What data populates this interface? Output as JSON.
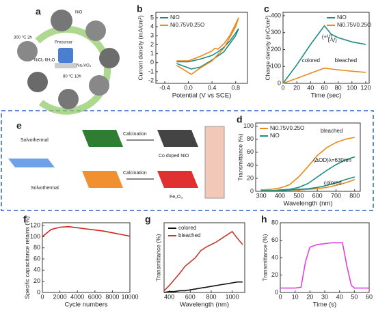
{
  "panel_a": {
    "label": "a",
    "texts": [
      "NiO",
      "300 °C 2h",
      "Precursor",
      "NiCl₂·6H₂O",
      "Na₃VO₄",
      "80 °C 10h"
    ]
  },
  "panel_e": {
    "label": "e",
    "texts": [
      "Solvothermal",
      "Solvothermal",
      "Calcination",
      "Calcination",
      "Co doped NiO",
      "Fe₂O₃"
    ]
  },
  "chart_data": [
    {
      "type": "line",
      "label": "b",
      "xlabel": "Potential (V vs SCE)",
      "ylabel": "Current density (mA/cm²)",
      "xlim": [
        -0.55,
        1.0
      ],
      "ylim": [
        -2.3,
        5.6
      ],
      "xticks": [
        -0.4,
        {
          "value": 0,
          "label": "0.0"
        },
        0.4,
        0.8
      ],
      "yticks": [
        -2,
        -1,
        0,
        1,
        2,
        3,
        4,
        5
      ],
      "legend": "upper left",
      "series": [
        {
          "name": "NiO",
          "color": "#1a8c80",
          "x": [
            -0.2,
            0,
            0.2,
            0.4,
            0.5,
            0.6,
            0.7,
            0.8,
            0.85,
            0.8,
            0.6,
            0.4,
            0.2,
            0.05,
            -0.2
          ],
          "values": [
            0.1,
            0.1,
            0.4,
            0.8,
            1.2,
            1.7,
            2.4,
            3.3,
            3.8,
            3.0,
            1.2,
            0.3,
            -0.5,
            -0.7,
            -0.1
          ]
        },
        {
          "name": "Ni0.75V0.25O",
          "color": "#e88a1a",
          "x": [
            -0.2,
            0,
            0.2,
            0.4,
            0.45,
            0.5,
            0.6,
            0.7,
            0.8,
            0.85,
            0.8,
            0.6,
            0.4,
            0.2,
            0.05,
            -0.2
          ],
          "values": [
            0.2,
            0.2,
            0.7,
            1.3,
            1.6,
            1.5,
            2.1,
            3.0,
            4.3,
            5.0,
            4.0,
            1.6,
            0.2,
            -0.6,
            -1.3,
            -0.3
          ]
        }
      ]
    },
    {
      "type": "line",
      "label": "c",
      "xlabel": "Time (sec)",
      "ylabel": "Charge density (mC/cm²)",
      "xlim": [
        0,
        125
      ],
      "ylim": [
        0,
        420
      ],
      "xticks": [
        0,
        20,
        40,
        60,
        80,
        100,
        120
      ],
      "yticks": [
        0,
        100,
        200,
        300,
        400
      ],
      "legend": "upper right",
      "annotations": [
        "(+V)",
        "(-V)",
        "colored",
        "bleached"
      ],
      "series": [
        {
          "name": "NiO",
          "color": "#1a8c80",
          "x": [
            0,
            20,
            40,
            60,
            70,
            80,
            100,
            120
          ],
          "values": [
            0,
            110,
            230,
            340,
            290,
            270,
            245,
            230
          ]
        },
        {
          "name": "Ni0.75V0.25O",
          "color": "#e88a1a",
          "x": [
            0,
            20,
            40,
            60,
            70,
            80,
            100,
            120
          ],
          "values": [
            0,
            30,
            60,
            90,
            85,
            80,
            72,
            65
          ]
        }
      ]
    },
    {
      "type": "line",
      "label": "d",
      "xlabel": "Wavelength (nm)",
      "ylabel": "Transmittance (%)",
      "xlim": [
        270,
        830
      ],
      "ylim": [
        0,
        105
      ],
      "xticks": [
        300,
        400,
        500,
        600,
        700,
        800
      ],
      "yticks": [
        0,
        20,
        40,
        60,
        80,
        100
      ],
      "legend": "upper left",
      "annotations": [
        "bleached",
        "(ΔOD)λ=630nm",
        "colored"
      ],
      "series": [
        {
          "name": "Ni0.75V0.25O",
          "color": "#e88a1a",
          "x": [
            300,
            350,
            400,
            450,
            500,
            550,
            600,
            650,
            700,
            750,
            800
          ],
          "values": [
            2,
            3,
            5,
            10,
            22,
            38,
            55,
            67,
            75,
            80,
            83
          ]
        },
        {
          "name": "NiO",
          "color": "#1a8c80",
          "x": [
            300,
            350,
            400,
            450,
            500,
            550,
            600,
            650,
            700,
            750,
            800
          ],
          "values": [
            1,
            1,
            2,
            3,
            6,
            12,
            22,
            32,
            41,
            48,
            53
          ]
        },
        {
          "color": "#e88a1a",
          "x": [
            300,
            350,
            400,
            450,
            500,
            550,
            600,
            650,
            700,
            750,
            800
          ],
          "values": [
            1,
            1,
            1,
            2,
            2,
            3,
            4,
            6,
            9,
            13,
            18
          ]
        },
        {
          "color": "#1a8c80",
          "x": [
            300,
            350,
            400,
            450,
            500,
            550,
            600,
            650,
            700,
            750,
            800
          ],
          "values": [
            1,
            1,
            1,
            2,
            3,
            4,
            6,
            9,
            13,
            18,
            22
          ]
        }
      ]
    },
    {
      "type": "line",
      "label": "f",
      "xlabel": "Cycle numbers",
      "ylabel": "Specific capacitance retains (%)",
      "xlim": [
        0,
        10000
      ],
      "ylim": [
        0,
        125
      ],
      "xticks": [
        0,
        2000,
        4000,
        6000,
        8000,
        10000
      ],
      "yticks": [
        0,
        20,
        40,
        60,
        80,
        100,
        120
      ],
      "series": [
        {
          "color": "#d42020",
          "x": [
            0,
            1000,
            2000,
            3000,
            4000,
            5000,
            6000,
            7000,
            8000,
            9000,
            10000
          ],
          "values": [
            100,
            113,
            117,
            118,
            116,
            114,
            112,
            110,
            107,
            104,
            101
          ]
        }
      ]
    },
    {
      "type": "line",
      "label": "g",
      "xlabel": "Wavelength (nm)",
      "ylabel": "Transmittance (%)",
      "xlim": [
        350,
        1120
      ],
      "ylim": [
        0,
        80
      ],
      "xticks": [
        400,
        600,
        800,
        1000
      ],
      "legend": "upper left",
      "series": [
        {
          "name": "colored",
          "color": "#111111",
          "x": [
            350,
            400,
            450,
            500,
            550,
            600,
            650,
            700,
            750,
            800,
            850,
            900,
            950,
            1000,
            1050,
            1100
          ],
          "values": [
            0,
            1,
            1,
            2,
            2,
            3,
            4,
            5,
            6,
            7,
            8,
            9,
            10,
            11,
            12,
            12
          ]
        },
        {
          "name": "bleached",
          "color": "#c0392b",
          "x": [
            350,
            400,
            450,
            500,
            550,
            600,
            650,
            700,
            750,
            800,
            850,
            900,
            950,
            1000,
            1050,
            1100
          ],
          "values": [
            2,
            8,
            15,
            22,
            30,
            35,
            40,
            48,
            52,
            55,
            58,
            62,
            66,
            70,
            62,
            55
          ]
        }
      ]
    },
    {
      "type": "line",
      "label": "h",
      "xlabel": "Time (s)",
      "ylabel": "Transmittance (%)",
      "xlim": [
        0,
        60
      ],
      "ylim": [
        0,
        80
      ],
      "xticks": [
        0,
        10,
        20,
        30,
        40,
        50,
        60
      ],
      "yticks": [
        0,
        20,
        40,
        60,
        80
      ],
      "series": [
        {
          "color": "#e040e0",
          "x": [
            0,
            5,
            10,
            14,
            17,
            20,
            25,
            30,
            35,
            40,
            42,
            45,
            48,
            50,
            55,
            60
          ],
          "values": [
            5,
            5,
            5,
            6,
            35,
            52,
            55,
            56,
            57,
            57,
            57,
            30,
            8,
            5,
            5,
            5
          ]
        }
      ]
    }
  ]
}
